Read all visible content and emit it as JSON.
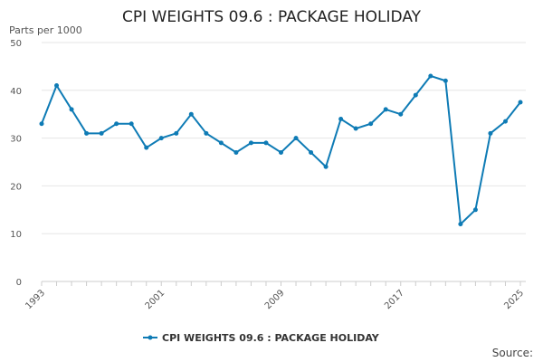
{
  "chart_data": {
    "type": "line",
    "title": "CPI WEIGHTS 09.6 : PACKAGE HOLIDAY",
    "ylabel": "Parts per 1000",
    "xlabel": "",
    "ylim": [
      0,
      50
    ],
    "yticks": [
      0,
      10,
      20,
      30,
      40,
      50
    ],
    "xlim": [
      1993,
      2025
    ],
    "xticks": [
      1993,
      2001,
      2009,
      2017,
      2025
    ],
    "grid": true,
    "legend": "bottom-center",
    "series": [
      {
        "name": "CPI WEIGHTS 09.6 : PACKAGE HOLIDAY",
        "color": "#0e7bb5",
        "x": [
          1993,
          1994,
          1995,
          1996,
          1997,
          1998,
          1999,
          2000,
          2001,
          2002,
          2003,
          2004,
          2005,
          2006,
          2007,
          2008,
          2009,
          2010,
          2011,
          2012,
          2013,
          2014,
          2015,
          2016,
          2017,
          2018,
          2019,
          2020,
          2021,
          2022,
          2023,
          2024,
          2025
        ],
        "values": [
          33,
          41,
          36,
          31,
          31,
          33,
          33,
          28,
          30,
          31,
          35,
          31,
          29,
          27,
          29,
          29,
          27,
          30,
          27,
          24,
          34,
          32,
          33,
          36,
          35,
          39,
          43,
          42,
          12,
          15,
          31,
          33.5,
          37.5
        ]
      }
    ]
  },
  "source_label": "Source:"
}
